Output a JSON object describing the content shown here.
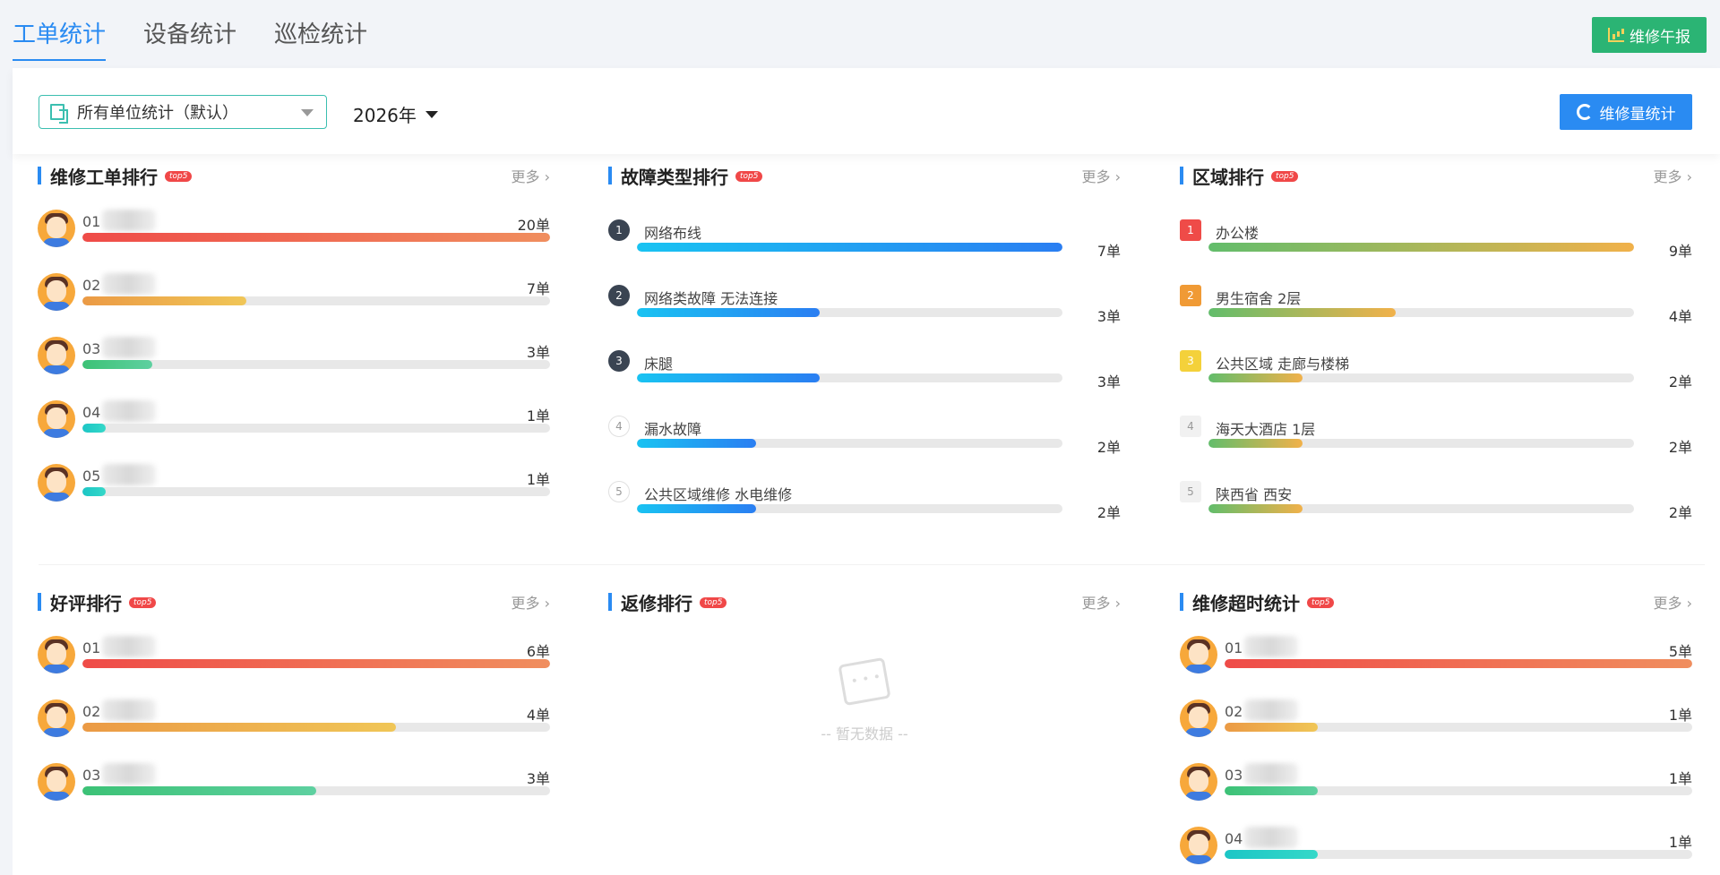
{
  "tabs": [
    {
      "label": "工单统计",
      "active": true
    },
    {
      "label": "设备统计",
      "active": false
    },
    {
      "label": "巡检统计",
      "active": false
    }
  ],
  "report_button": "维修午报",
  "unit_select": "所有单位统计（默认）",
  "year_select": "2026年",
  "stat_button": "维修量统计",
  "more_label": "更多",
  "badge": "top5",
  "cards": {
    "repair_orders": {
      "title": "维修工单排行",
      "items": [
        {
          "rank": "01",
          "count": "20单",
          "pct": 100,
          "color": "red"
        },
        {
          "rank": "02",
          "count": "7单",
          "pct": 35,
          "color": "orange"
        },
        {
          "rank": "03",
          "count": "3单",
          "pct": 15,
          "color": "green"
        },
        {
          "rank": "04",
          "count": "1单",
          "pct": 5,
          "color": "teal"
        },
        {
          "rank": "05",
          "count": "1单",
          "pct": 5,
          "color": "teal"
        }
      ]
    },
    "fault_types": {
      "title": "故障类型排行",
      "items": [
        {
          "rank": "1",
          "label": "网络布线",
          "count": "7单",
          "pct": 100
        },
        {
          "rank": "2",
          "label": "网络类故障 无法连接",
          "count": "3单",
          "pct": 43
        },
        {
          "rank": "3",
          "label": "床腿",
          "count": "3单",
          "pct": 43
        },
        {
          "rank": "4",
          "label": "漏水故障",
          "count": "2单",
          "pct": 28
        },
        {
          "rank": "5",
          "label": "公共区域维修 水电维修",
          "count": "2单",
          "pct": 28
        }
      ]
    },
    "areas": {
      "title": "区域排行",
      "items": [
        {
          "rank": "1",
          "label": "办公楼",
          "count": "9单",
          "pct": 100
        },
        {
          "rank": "2",
          "label": "男生宿舍 2层",
          "count": "4单",
          "pct": 44
        },
        {
          "rank": "3",
          "label": "公共区域 走廊与楼梯",
          "count": "2单",
          "pct": 22
        },
        {
          "rank": "4",
          "label": "海天大酒店 1层",
          "count": "2单",
          "pct": 22
        },
        {
          "rank": "5",
          "label": "陕西省 西安",
          "count": "2单",
          "pct": 22
        }
      ]
    },
    "good_reviews": {
      "title": "好评排行",
      "items": [
        {
          "rank": "01",
          "count": "6单",
          "pct": 100,
          "color": "red"
        },
        {
          "rank": "02",
          "count": "4单",
          "pct": 67,
          "color": "orange"
        },
        {
          "rank": "03",
          "count": "3单",
          "pct": 50,
          "color": "green"
        }
      ]
    },
    "rework": {
      "title": "返修排行",
      "empty_text": "-- 暂无数据 --"
    },
    "overtime": {
      "title": "维修超时统计",
      "items": [
        {
          "rank": "01",
          "count": "5单",
          "pct": 100,
          "color": "red"
        },
        {
          "rank": "02",
          "count": "1单",
          "pct": 20,
          "color": "orange"
        },
        {
          "rank": "03",
          "count": "1单",
          "pct": 20,
          "color": "green"
        },
        {
          "rank": "04",
          "count": "1单",
          "pct": 20,
          "color": "teal"
        }
      ]
    }
  },
  "colors": {
    "red": "linear-gradient(90deg,#ef4b48,#f08e5e)",
    "orange": "linear-gradient(90deg,#eb9a45,#f0c657)",
    "green": "linear-gradient(90deg,#3cc276,#5ed0a0)",
    "teal": "linear-gradient(90deg,#1cc6c6,#35d8c8)",
    "blue": "linear-gradient(90deg,#19c3f2,#2a7ef2)",
    "greenyellow": "linear-gradient(90deg,#62bd6b,#f1b14a)",
    "num_dark": "#3a4452",
    "num_red": "#ef4b48",
    "num_orange": "#f09a35",
    "num_yellow": "#f4d13a",
    "num_light": "#f1f1f1"
  }
}
